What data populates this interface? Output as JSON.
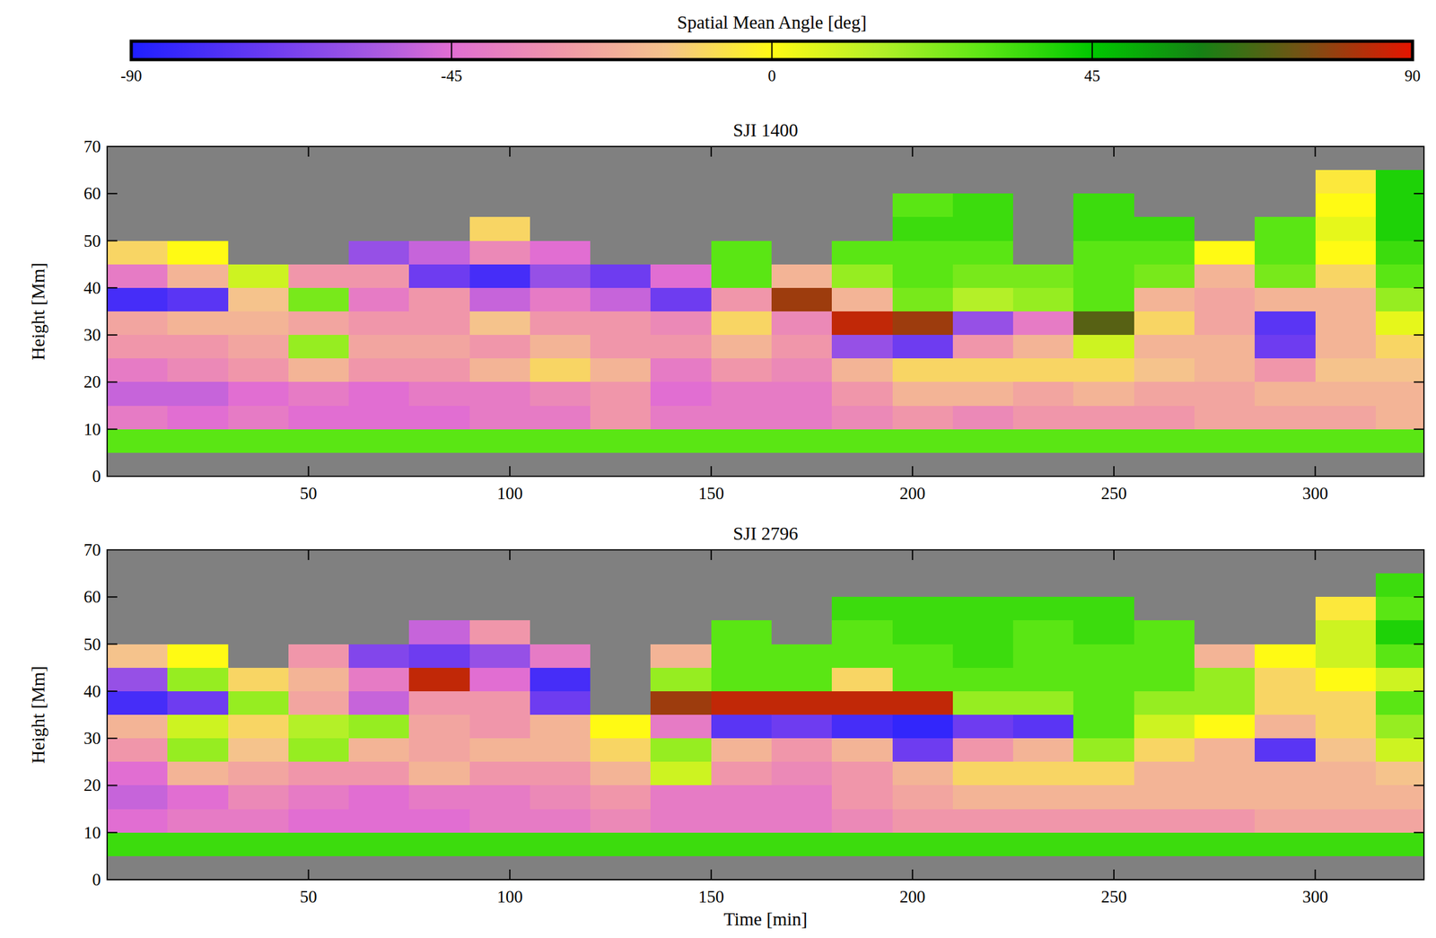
{
  "chart_data": [
    {
      "type": "heatmap",
      "title": "SJI 1400",
      "ylabel": "Height [Mm]",
      "xlim": [
        0,
        327
      ],
      "xticks": [
        50,
        100,
        150,
        200,
        250,
        300
      ],
      "ylim": [
        0,
        70
      ],
      "yticks": [
        0,
        10,
        20,
        30,
        40,
        50,
        60,
        70
      ],
      "x_edges": [
        0,
        15,
        30,
        45,
        60,
        75,
        90,
        105,
        120,
        135,
        150,
        165,
        180,
        195,
        210,
        225,
        240,
        255,
        270,
        285,
        300,
        315,
        327
      ],
      "y_edges": [
        5,
        10,
        15,
        20,
        25,
        30,
        35,
        40,
        45,
        50,
        55,
        60,
        65
      ],
      "colorbar": {
        "label": "Spatial Mean Angle [deg]",
        "range": [
          -90,
          90
        ],
        "ticks": [
          -90,
          -45,
          0,
          45,
          90
        ]
      },
      "cells": [
        [
          30,
          -40,
          -50,
          -40,
          -30,
          -25,
          -80,
          -40,
          -10,
          null,
          null,
          null
        ],
        [
          30,
          -45,
          -50,
          -35,
          -30,
          -20,
          -75,
          -20,
          0,
          null,
          null,
          null
        ],
        [
          30,
          -40,
          -45,
          -30,
          -25,
          -20,
          -15,
          10,
          null,
          null,
          null,
          null
        ],
        [
          30,
          -45,
          -40,
          -20,
          20,
          -25,
          25,
          -30,
          null,
          null,
          null,
          null
        ],
        [
          30,
          -45,
          -45,
          -30,
          -25,
          -30,
          -40,
          -30,
          -60,
          null,
          null,
          null
        ],
        [
          30,
          -45,
          -40,
          -30,
          -25,
          -30,
          -30,
          -70,
          -50,
          null,
          null,
          null
        ],
        [
          30,
          -40,
          -40,
          -20,
          -30,
          -15,
          -50,
          -80,
          -35,
          -10,
          null,
          null
        ],
        [
          30,
          -40,
          -35,
          -10,
          -20,
          -30,
          -40,
          -60,
          -45,
          null,
          null,
          null
        ],
        [
          30,
          -30,
          -30,
          -20,
          -30,
          -30,
          -50,
          -70,
          null,
          null,
          null,
          null
        ],
        [
          30,
          -40,
          -45,
          -40,
          -30,
          -35,
          -70,
          -45,
          null,
          null,
          null,
          null
        ],
        [
          30,
          -40,
          -40,
          -30,
          -20,
          -10,
          -30,
          30,
          30,
          null,
          null,
          null
        ],
        [
          30,
          -40,
          -40,
          -35,
          -30,
          -35,
          80,
          -20,
          null,
          null,
          null,
          null
        ],
        [
          30,
          -35,
          -30,
          -20,
          -60,
          85,
          -20,
          20,
          30,
          null,
          null,
          null
        ],
        [
          30,
          -30,
          -20,
          -10,
          -70,
          80,
          25,
          30,
          30,
          35,
          30,
          null
        ],
        [
          30,
          -35,
          -20,
          -10,
          -30,
          -60,
          15,
          25,
          30,
          35,
          35,
          null
        ],
        [
          30,
          -30,
          -25,
          -10,
          -20,
          -40,
          20,
          25,
          null,
          null,
          null,
          null
        ],
        [
          30,
          -30,
          -20,
          -10,
          10,
          70,
          30,
          30,
          30,
          35,
          35,
          null
        ],
        [
          30,
          -30,
          -25,
          -15,
          -20,
          -10,
          -20,
          25,
          30,
          35,
          null,
          null
        ],
        [
          30,
          -25,
          -25,
          -20,
          -20,
          -25,
          -25,
          -20,
          0,
          null,
          null,
          null
        ],
        [
          30,
          -25,
          -20,
          -30,
          -70,
          -75,
          -20,
          25,
          30,
          30,
          null,
          null
        ],
        [
          30,
          -25,
          -20,
          -15,
          -20,
          -20,
          -20,
          -10,
          0,
          5,
          0,
          -5
        ],
        [
          30,
          -20,
          -20,
          -15,
          -10,
          5,
          20,
          30,
          35,
          40,
          40,
          40
        ]
      ]
    },
    {
      "type": "heatmap",
      "title": "SJI 2796",
      "ylabel": "Height [Mm]",
      "xlabel": "Time [min]",
      "xlim": [
        0,
        327
      ],
      "xticks": [
        50,
        100,
        150,
        200,
        250,
        300
      ],
      "ylim": [
        0,
        70
      ],
      "yticks": [
        0,
        10,
        20,
        30,
        40,
        50,
        60,
        70
      ],
      "x_edges": [
        0,
        15,
        30,
        45,
        60,
        75,
        90,
        105,
        120,
        135,
        150,
        165,
        180,
        195,
        210,
        225,
        240,
        255,
        270,
        285,
        300,
        315,
        327
      ],
      "y_edges": [
        5,
        10,
        15,
        20,
        25,
        30,
        35,
        40,
        45,
        50,
        55,
        60,
        65
      ],
      "cells": [
        [
          35,
          -45,
          -50,
          -45,
          -30,
          -20,
          -80,
          -60,
          -15,
          null,
          null,
          null
        ],
        [
          35,
          -40,
          -45,
          -20,
          20,
          10,
          -70,
          20,
          0,
          null,
          null,
          null
        ],
        [
          35,
          -40,
          -35,
          -25,
          -15,
          -10,
          20,
          -10,
          null,
          null,
          null,
          null
        ],
        [
          35,
          -45,
          -40,
          -30,
          20,
          15,
          -25,
          -20,
          -30,
          null,
          null,
          null
        ],
        [
          35,
          -45,
          -45,
          -30,
          -20,
          20,
          -50,
          -40,
          -65,
          null,
          null,
          null
        ],
        [
          35,
          -45,
          -40,
          -20,
          -25,
          -25,
          -30,
          85,
          -70,
          -50,
          null,
          null
        ],
        [
          35,
          -40,
          -40,
          -30,
          -20,
          -30,
          -30,
          -45,
          -60,
          -30,
          null,
          null
        ],
        [
          35,
          -40,
          -35,
          -30,
          -20,
          -20,
          -70,
          -80,
          -40,
          null,
          null,
          null
        ],
        [
          35,
          -35,
          -30,
          -20,
          -10,
          0,
          null,
          null,
          null,
          null,
          null,
          null
        ],
        [
          35,
          -40,
          -40,
          10,
          20,
          -40,
          80,
          20,
          -20,
          null,
          null,
          null
        ],
        [
          35,
          -40,
          -40,
          -30,
          -20,
          -75,
          85,
          30,
          30,
          30,
          null,
          null
        ],
        [
          35,
          -40,
          -40,
          -35,
          -30,
          -70,
          85,
          30,
          30,
          null,
          null,
          null
        ],
        [
          35,
          -35,
          -30,
          -30,
          -20,
          -80,
          85,
          -10,
          30,
          30,
          35,
          null
        ],
        [
          35,
          -30,
          -25,
          -20,
          -70,
          -85,
          85,
          30,
          30,
          35,
          35,
          null
        ],
        [
          35,
          -30,
          -20,
          -10,
          -30,
          -70,
          20,
          30,
          35,
          35,
          35,
          null
        ],
        [
          35,
          -30,
          -20,
          -10,
          -20,
          -75,
          20,
          30,
          30,
          30,
          35,
          null
        ],
        [
          35,
          -30,
          -20,
          -10,
          20,
          30,
          30,
          30,
          30,
          35,
          35,
          null
        ],
        [
          35,
          -30,
          -20,
          -20,
          -10,
          10,
          20,
          30,
          30,
          30,
          null,
          null
        ],
        [
          35,
          -30,
          -20,
          -20,
          -20,
          0,
          20,
          20,
          -20,
          null,
          null,
          null
        ],
        [
          35,
          -25,
          -20,
          -20,
          -75,
          -20,
          -10,
          -10,
          0,
          null,
          null,
          null
        ],
        [
          35,
          -25,
          -20,
          -20,
          -15,
          -10,
          -10,
          0,
          10,
          10,
          -5,
          null
        ],
        [
          35,
          -25,
          -20,
          -15,
          10,
          20,
          30,
          10,
          30,
          40,
          30,
          35
        ]
      ]
    }
  ]
}
